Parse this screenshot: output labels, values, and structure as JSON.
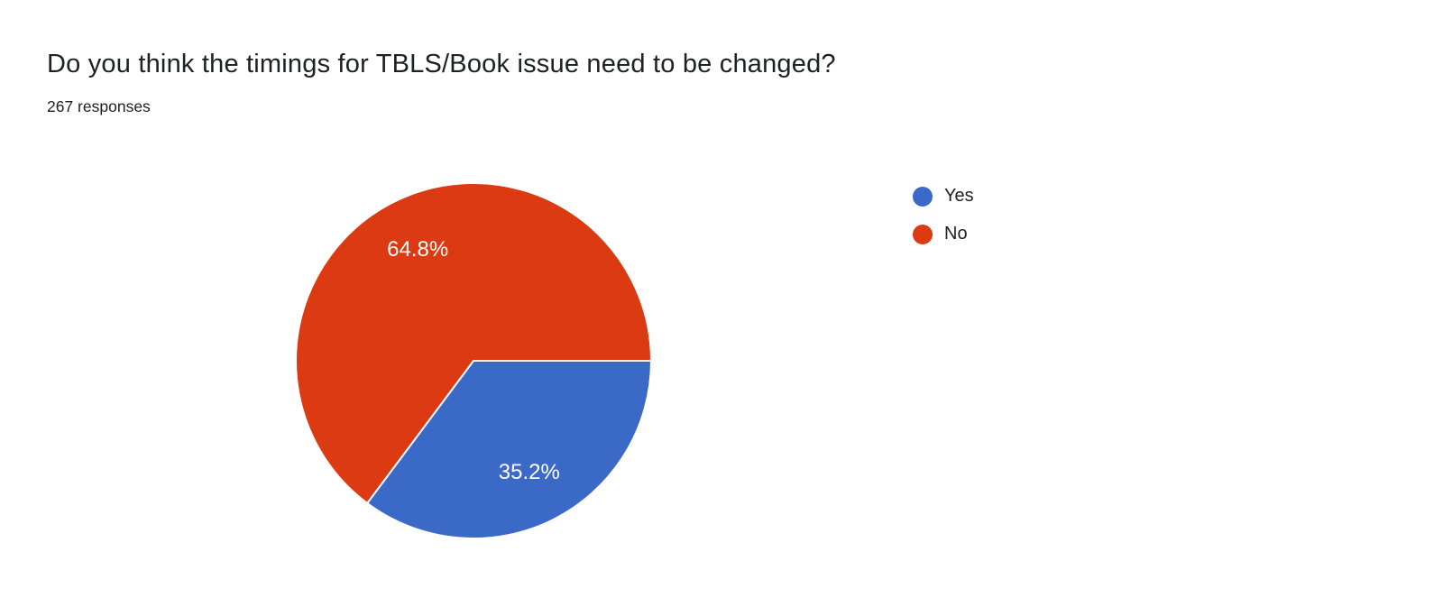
{
  "question_card": {
    "title": "Do you think the timings for TBLS/Book issue need to be changed?",
    "responses_label": "267 responses",
    "responses_count": 267
  },
  "chart_data": {
    "type": "pie",
    "title": "Do you think the timings for TBLS/Book issue need to be changed?",
    "categories": [
      "Yes",
      "No"
    ],
    "values": [
      35.2,
      64.8
    ],
    "slice_labels": [
      "35.2%",
      "64.8%"
    ],
    "colors": [
      "#3a69c7",
      "#db3a12"
    ],
    "start_angle_deg": 0,
    "direction": "clockwise",
    "legend_position": "right",
    "legend": [
      "Yes",
      "No"
    ],
    "slice_label_color": "#ffffff",
    "slice_divider_color": "#ffffff"
  },
  "theme": {
    "background": "#ffffff",
    "title_color": "#202124",
    "subtitle_color": "#202124",
    "legend_text_color": "#212121"
  }
}
